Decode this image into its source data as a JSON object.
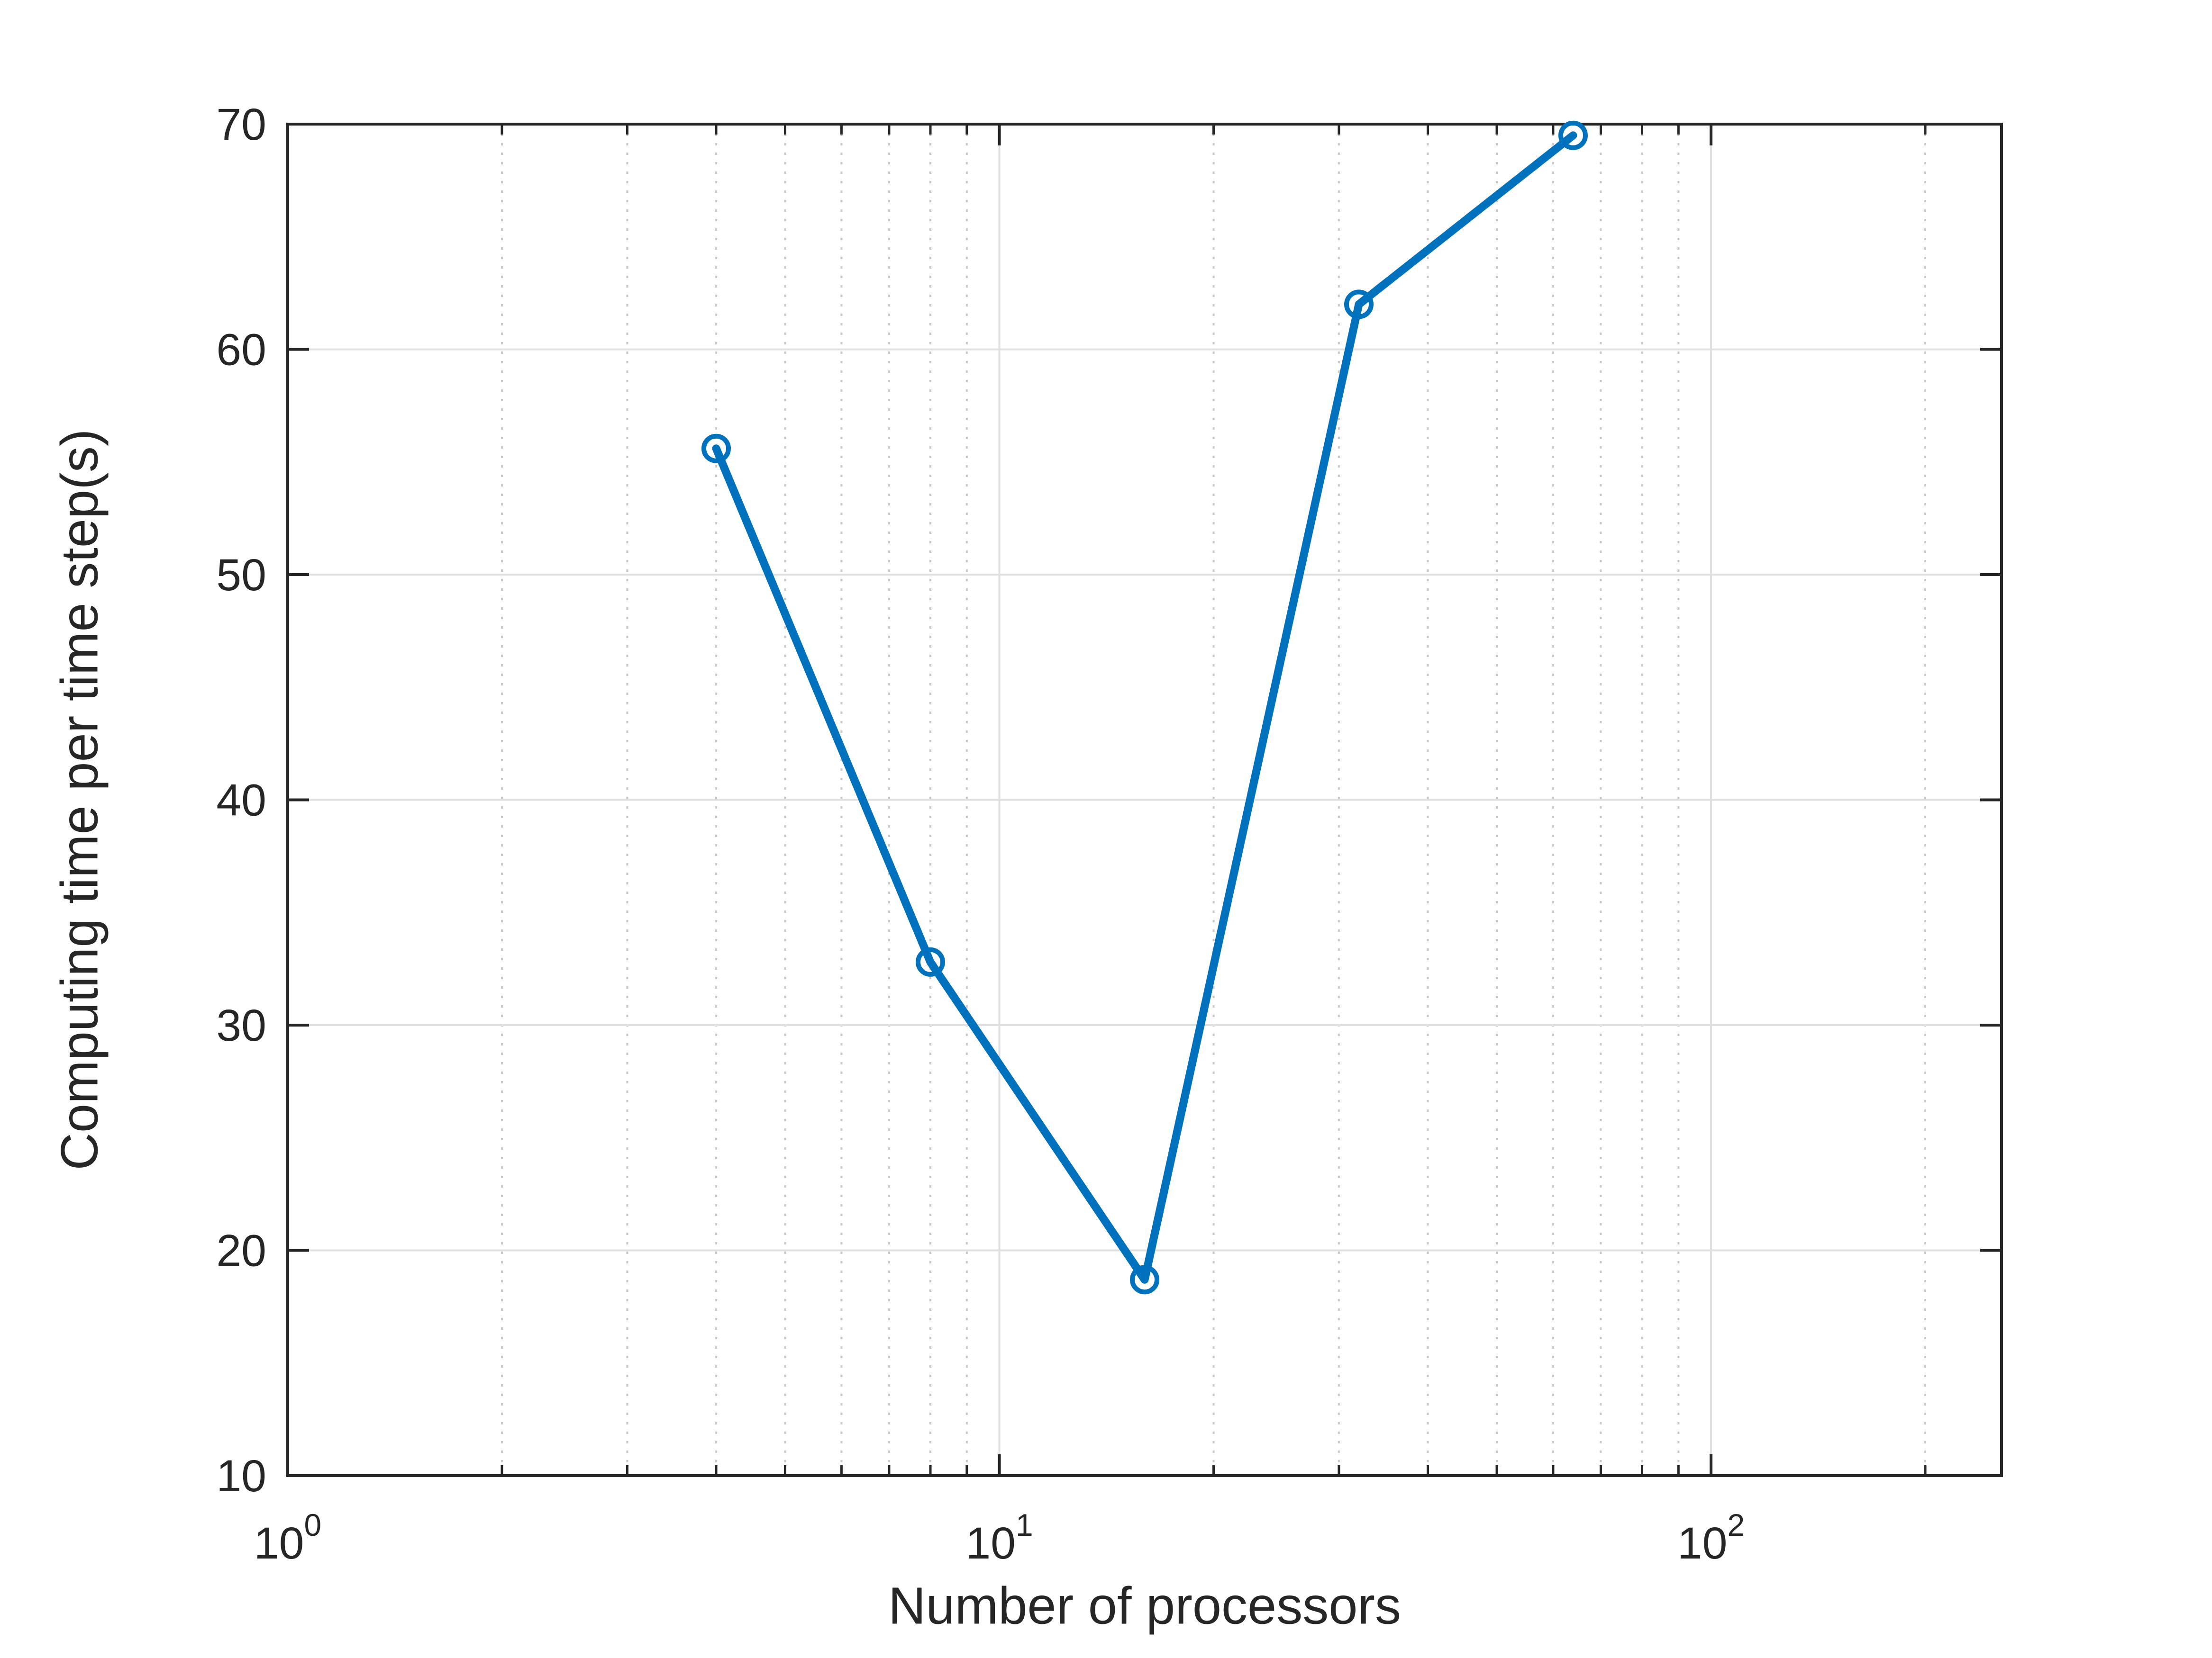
{
  "figure": {
    "background": "#ffffff",
    "title": ""
  },
  "chart_data": {
    "type": "line",
    "title": "",
    "xlabel": "Number of processors",
    "ylabel": "Computing time per time step(s)",
    "x_scale": "log10",
    "y_scale": "linear",
    "xlim": [
      1,
      256
    ],
    "ylim": [
      10,
      70
    ],
    "x": [
      4,
      8,
      16,
      32,
      64
    ],
    "y": [
      55.6,
      32.8,
      18.7,
      62.0,
      69.5
    ],
    "series_name": "Computing time per time step",
    "y_ticks": [
      10,
      20,
      30,
      40,
      50,
      60,
      70
    ],
    "x_major_ticks": [
      1,
      10,
      100
    ],
    "x_major_tick_exponents": [
      0,
      1,
      2
    ],
    "x_major_tick_base": "10",
    "x_minor_ticks": [
      2,
      3,
      4,
      5,
      6,
      7,
      8,
      9,
      20,
      30,
      40,
      50,
      60,
      70,
      80,
      90,
      200
    ],
    "grid": {
      "major": "solid",
      "minor": "dotted",
      "legend": "none"
    },
    "colors": {
      "line": "#0072BD",
      "marker": "#0072BD",
      "axis": "#262626",
      "tick_label": "#262626",
      "grid_major": "#e0e0e0",
      "grid_minor": "#c8c8c8",
      "background": "#ffffff"
    },
    "marker_style": "open-circle"
  }
}
